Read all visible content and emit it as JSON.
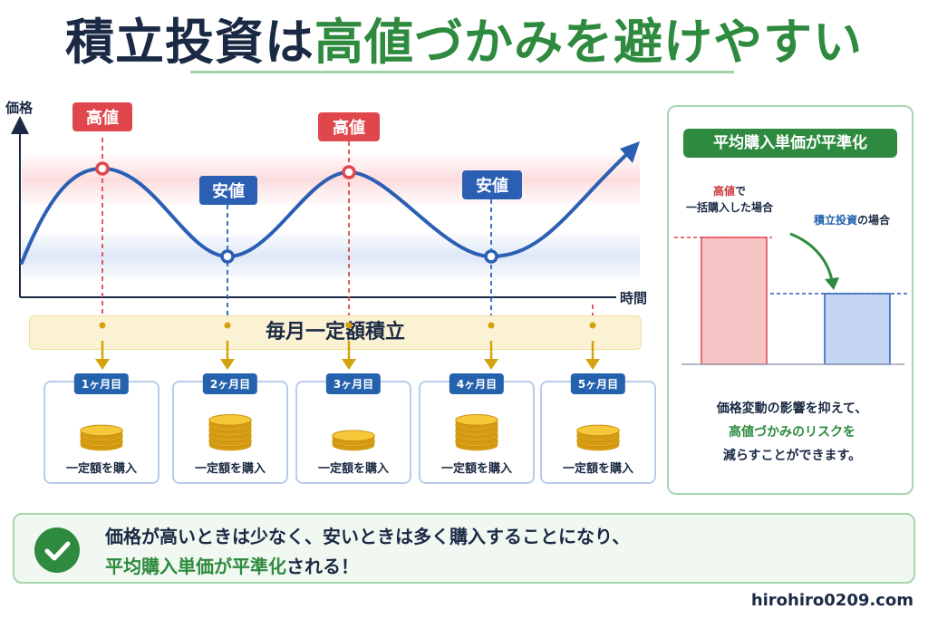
{
  "title": {
    "part1": "積立投資は",
    "part2": "高値づかみを避けやすい"
  },
  "chart": {
    "y_axis_label": "価格",
    "x_axis_label": "時間",
    "high_label": "高値",
    "low_label": "安値",
    "colors": {
      "line": "#2b5fb4",
      "high": "#e0474c",
      "low": "#2b5fb4",
      "arrow": "#d4a20c"
    }
  },
  "strip_label": "毎月一定額積立",
  "months": [
    {
      "badge": "1ヶ月目",
      "label": "一定額を購入",
      "coins": 3
    },
    {
      "badge": "2ヶ月目",
      "label": "一定額を購入",
      "coins": 5
    },
    {
      "badge": "3ヶ月目",
      "label": "一定額を購入",
      "coins": 2
    },
    {
      "badge": "4ヶ月目",
      "label": "一定額を購入",
      "coins": 5
    },
    {
      "badge": "5ヶ月目",
      "label": "一定額を購入",
      "coins": 3
    }
  ],
  "panel": {
    "title": "平均購入単価が平準化",
    "lump_red": "高値",
    "lump_rest1": "で",
    "lump_rest2": "一括購入した場合",
    "accum_blue": "積立投資",
    "accum_rest": "の場合",
    "note1": "価格変動の影響を抑えて、",
    "note2": "高値づかみのリスクを",
    "note3": "減らすことができます。"
  },
  "summary": {
    "line1": "価格が高いときは少なく、安いときは多く購入することになり、",
    "line2_green": "平均購入単価が平準化",
    "line2_rest": "される！"
  },
  "site": "hirohiro0209.com"
}
